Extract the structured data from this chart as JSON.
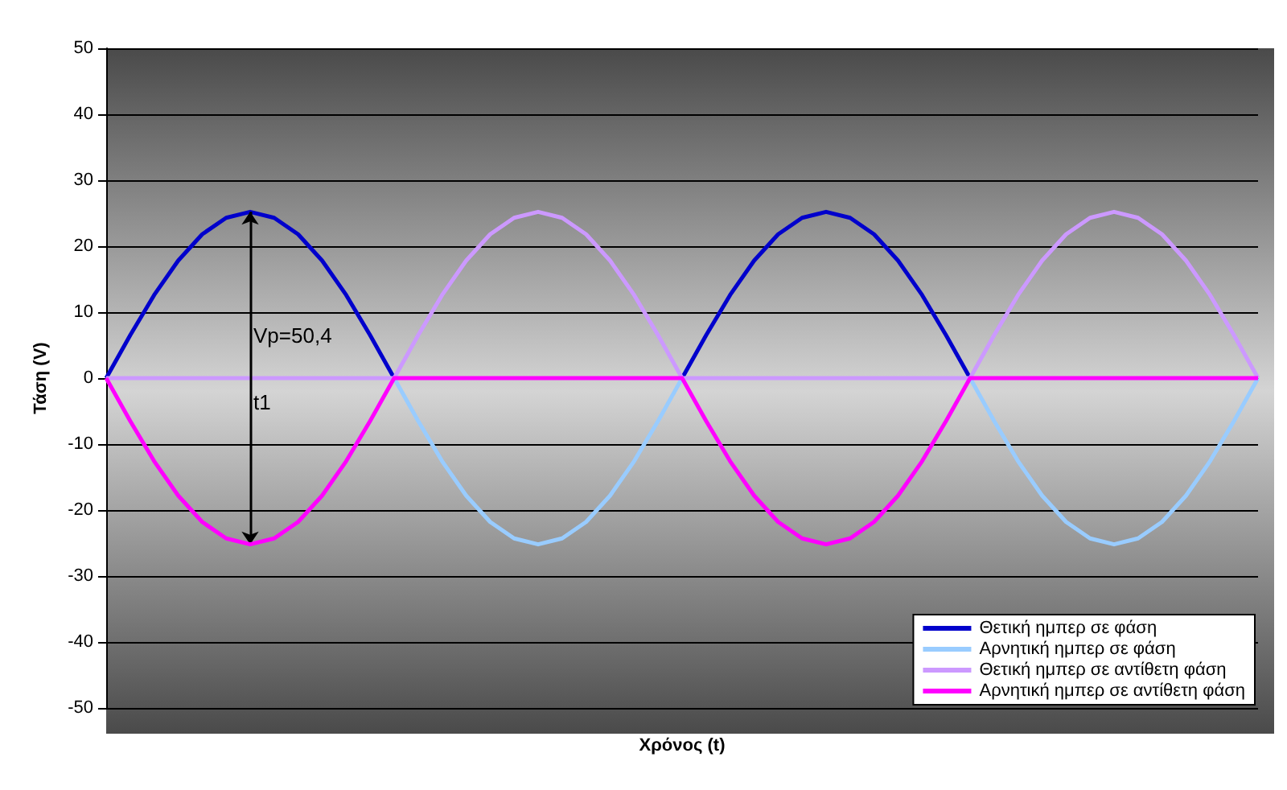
{
  "chart_data": {
    "type": "line",
    "xlabel": "Χρόνος (t)",
    "ylabel": "Τάση (V)",
    "categories": [
      null,
      null,
      null,
      null,
      null,
      null,
      null,
      null,
      null,
      null,
      null,
      null,
      null,
      null,
      null,
      null,
      null,
      null,
      null,
      null,
      null,
      null,
      null,
      null,
      null,
      null,
      null,
      null,
      null,
      null,
      null,
      null,
      null,
      null,
      null,
      null,
      null,
      null,
      null,
      null,
      null,
      null,
      null,
      null,
      null,
      null,
      null,
      null,
      null
    ],
    "series": [
      {
        "name": "Θετική ημπερ σε φάση",
        "color": "#0000cc",
        "values": [
          0,
          6.5,
          12.6,
          17.8,
          21.8,
          24.3,
          25.2,
          24.3,
          21.8,
          17.8,
          12.6,
          6.5,
          0,
          null,
          null,
          null,
          null,
          null,
          null,
          null,
          null,
          null,
          null,
          null,
          0,
          6.5,
          12.6,
          17.8,
          21.8,
          24.3,
          25.2,
          24.3,
          21.8,
          17.8,
          12.6,
          6.5,
          0,
          null,
          null,
          null,
          null,
          null,
          null,
          null,
          null,
          null,
          null,
          null,
          null
        ]
      },
      {
        "name": "Αρνητική ημπερ σε φάση",
        "color": "#99ccff",
        "values": [
          null,
          null,
          null,
          null,
          null,
          null,
          null,
          null,
          null,
          null,
          null,
          null,
          0,
          -6.5,
          -12.6,
          -17.8,
          -21.8,
          -24.3,
          -25.2,
          -24.3,
          -21.8,
          -17.8,
          -12.6,
          -6.5,
          0,
          null,
          null,
          null,
          null,
          null,
          null,
          null,
          null,
          null,
          null,
          null,
          0,
          -6.5,
          -12.6,
          -17.8,
          -21.8,
          -24.3,
          -25.2,
          -24.3,
          -21.8,
          -17.8,
          -12.6,
          -6.5,
          0
        ]
      },
      {
        "name": "Θετική ημπερ σε αντίθετη φάση",
        "color": "#cc99ff",
        "values": [
          0,
          0,
          0,
          0,
          0,
          0,
          0,
          0,
          0,
          0,
          0,
          0,
          0,
          6.5,
          12.6,
          17.8,
          21.8,
          24.3,
          25.2,
          24.3,
          21.8,
          17.8,
          12.6,
          6.5,
          0,
          0,
          0,
          0,
          0,
          0,
          0,
          0,
          0,
          0,
          0,
          0,
          0,
          6.5,
          12.6,
          17.8,
          21.8,
          24.3,
          25.2,
          24.3,
          21.8,
          17.8,
          12.6,
          6.5,
          0
        ]
      },
      {
        "name": "Αρνητική ημπερ σε αντίθετη φάση",
        "color": "#ff00ff",
        "values": [
          0,
          -6.5,
          -12.6,
          -17.8,
          -21.8,
          -24.3,
          -25.2,
          -24.3,
          -21.8,
          -17.8,
          -12.6,
          -6.5,
          0,
          0,
          0,
          0,
          0,
          0,
          0,
          0,
          0,
          0,
          0,
          0,
          0,
          -6.5,
          -12.6,
          -17.8,
          -21.8,
          -24.3,
          -25.2,
          -24.3,
          -21.8,
          -17.8,
          -12.6,
          -6.5,
          0,
          0,
          0,
          0,
          0,
          0,
          0,
          0,
          0,
          0,
          0,
          0,
          0
        ]
      }
    ],
    "ylim": [
      -50,
      50
    ],
    "yticks": [
      -50,
      -40,
      -30,
      -20,
      -10,
      0,
      10,
      20,
      30,
      40,
      50
    ],
    "grid": "y",
    "legend": "bottom right",
    "marker": "none",
    "line_style": "solid",
    "annotations": [
      "Vp=50,4",
      "t1"
    ]
  }
}
